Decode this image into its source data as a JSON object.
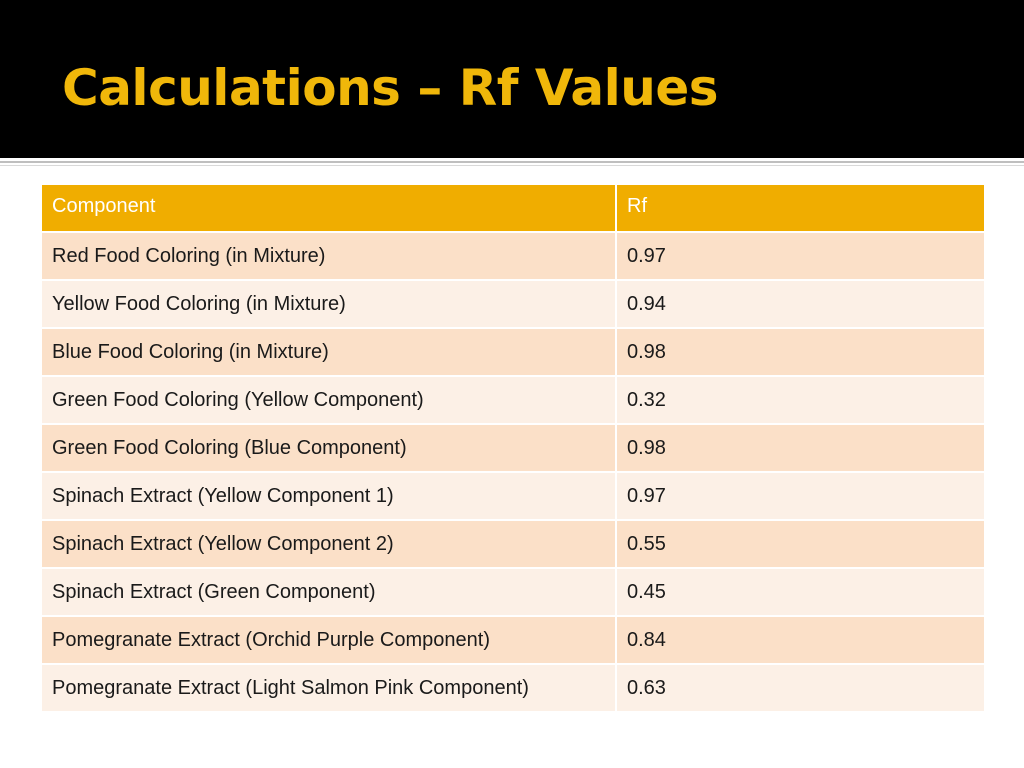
{
  "slide": {
    "title": "Calculations – Rf Values"
  },
  "table": {
    "headers": {
      "component": "Component",
      "rf": "Rf"
    },
    "rows": [
      {
        "component": "Red Food Coloring (in Mixture)",
        "rf": "0.97"
      },
      {
        "component": "Yellow Food Coloring (in Mixture)",
        "rf": "0.94"
      },
      {
        "component": "Blue Food Coloring (in Mixture)",
        "rf": "0.98"
      },
      {
        "component": "Green Food Coloring (Yellow Component)",
        "rf": "0.32"
      },
      {
        "component": "Green Food Coloring (Blue Component)",
        "rf": "0.98"
      },
      {
        "component": "Spinach Extract (Yellow Component 1)",
        "rf": "0.97"
      },
      {
        "component": "Spinach Extract (Yellow Component 2)",
        "rf": "0.55"
      },
      {
        "component": "Spinach Extract (Green Component)",
        "rf": "0.45"
      },
      {
        "component": "Pomegranate Extract (Orchid Purple Component)",
        "rf": "0.84"
      },
      {
        "component": "Pomegranate Extract (Light Salmon Pink Component)",
        "rf": "0.63"
      }
    ]
  },
  "colors": {
    "title_text": "#f0b70a",
    "title_background": "#000000",
    "header_background": "#f0ad00",
    "row_odd": "#fbe0c8",
    "row_even": "#fcf0e6"
  }
}
